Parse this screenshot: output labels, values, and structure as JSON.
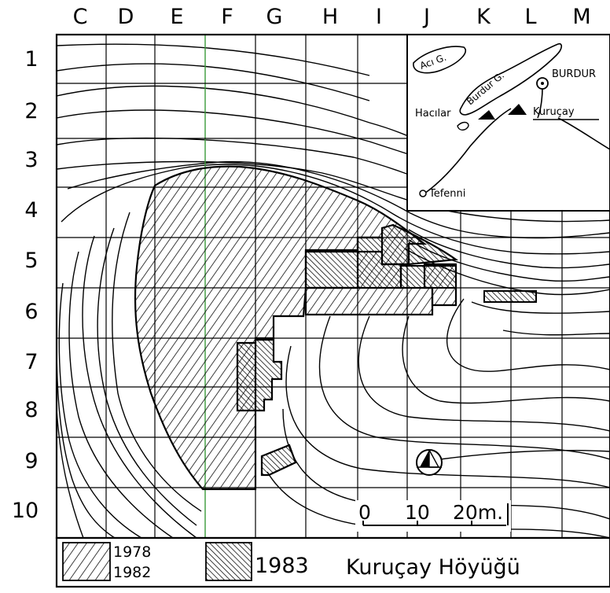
{
  "columns": [
    "C",
    "D",
    "E",
    "F",
    "G",
    "H",
    "I",
    "J",
    "K",
    "L",
    "M"
  ],
  "rows": [
    "1",
    "2",
    "3",
    "4",
    "5",
    "6",
    "7",
    "8",
    "9",
    "10"
  ],
  "inset": {
    "places": [
      "Acı G.",
      "Burdur G.",
      "BURDUR",
      "Hacılar",
      "Kuruçay",
      "Tefenni"
    ]
  },
  "scale": {
    "labels": [
      "0",
      "10",
      "20m."
    ]
  },
  "legend": {
    "period_1978_1982": {
      "top": "1978",
      "bottom": "1982"
    },
    "period_1983": "1983",
    "site_name": "Kuruçay Höyüğü"
  },
  "icons": [
    "north-arrow-icon",
    "site-triangle-icon",
    "town-symbol-icon"
  ]
}
